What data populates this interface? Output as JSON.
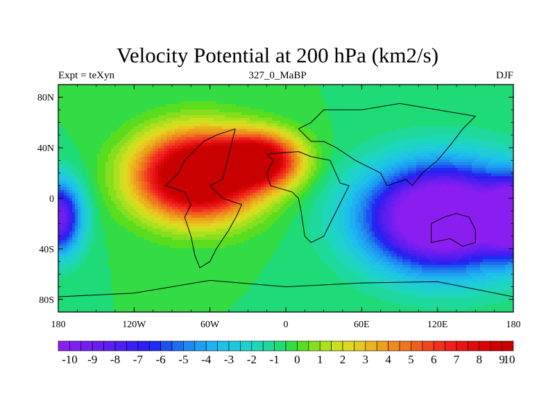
{
  "chart_data": {
    "type": "heatmap",
    "title": "Velocity Potential at 200 hPa (km2/s)",
    "subtitle_left": "Expt = teXyn",
    "subtitle_center": "327_0_MaBP",
    "subtitle_right": "DJF",
    "x_ticks": [
      {
        "value": -180,
        "label": "180"
      },
      {
        "value": -120,
        "label": "120W"
      },
      {
        "value": -60,
        "label": "60W"
      },
      {
        "value": 0,
        "label": "0"
      },
      {
        "value": 60,
        "label": "60E"
      },
      {
        "value": 120,
        "label": "120E"
      },
      {
        "value": 180,
        "label": "180"
      }
    ],
    "y_ticks": [
      {
        "value": 80,
        "label": "80N"
      },
      {
        "value": 40,
        "label": "40N"
      },
      {
        "value": 0,
        "label": "0"
      },
      {
        "value": -40,
        "label": "40S"
      },
      {
        "value": -80,
        "label": "80S"
      }
    ],
    "xlim": [
      -180,
      180
    ],
    "ylim": [
      -90,
      90
    ],
    "colorbar": {
      "levels": [
        -10,
        -9.5,
        -9,
        -8.5,
        -8,
        -7.5,
        -7,
        -6.5,
        -6,
        -5.5,
        -5,
        -4.5,
        -4,
        -3.5,
        -3,
        -2.5,
        -2,
        -1.5,
        -1,
        -0.5,
        0,
        0.5,
        1,
        1.5,
        2,
        2.5,
        3,
        3.5,
        4,
        4.5,
        5,
        5.5,
        6,
        6.5,
        7,
        7.5,
        8,
        8.5,
        9,
        9.5,
        10
      ],
      "labels": [
        "-10",
        "-9",
        "-8",
        "-7",
        "-6",
        "-5",
        "-4",
        "-3",
        "-2",
        "-1",
        "0",
        "1",
        "2",
        "3",
        "4",
        "5",
        "6",
        "7",
        "8",
        "9",
        "10"
      ],
      "colors": [
        "#8a1ef0",
        "#7f1ef0",
        "#751ef0",
        "#6a1ef0",
        "#5e1ef0",
        "#4f1ef0",
        "#3f1ef0",
        "#2e1ef0",
        "#1e2ef0",
        "#1e4ff0",
        "#1e6ef0",
        "#1e8af0",
        "#1e9ff0",
        "#1eb0f0",
        "#1ebfe8",
        "#1ec9dc",
        "#1ed0ce",
        "#1ed6b8",
        "#1ed89c",
        "#1edb78",
        "#33dc45",
        "#5add1e",
        "#86df1e",
        "#aae01e",
        "#c8e01e",
        "#dcd91e",
        "#e6c81e",
        "#eab41e",
        "#eca01e",
        "#ee8a1e",
        "#ef741e",
        "#f05e1e",
        "#f0461e",
        "#f0301e",
        "#f01e1e",
        "#e81414",
        "#e00a0a",
        "#d80505",
        "#d00000",
        "#c80000"
      ]
    },
    "field_centers": [
      {
        "lon": -70,
        "lat": 18,
        "value": 14,
        "sigma_lon": 45,
        "sigma_lat": 32
      },
      {
        "lon": -20,
        "lat": 30,
        "value": 10,
        "sigma_lon": 30,
        "sigma_lat": 20
      },
      {
        "lon": 125,
        "lat": -15,
        "value": -14,
        "sigma_lon": 60,
        "sigma_lat": 40
      },
      {
        "lon": -180,
        "lat": -15,
        "value": -9,
        "sigma_lon": 18,
        "sigma_lat": 28
      },
      {
        "lon": 180,
        "lat": -15,
        "value": -9,
        "sigma_lon": 18,
        "sigma_lat": 28
      }
    ]
  }
}
